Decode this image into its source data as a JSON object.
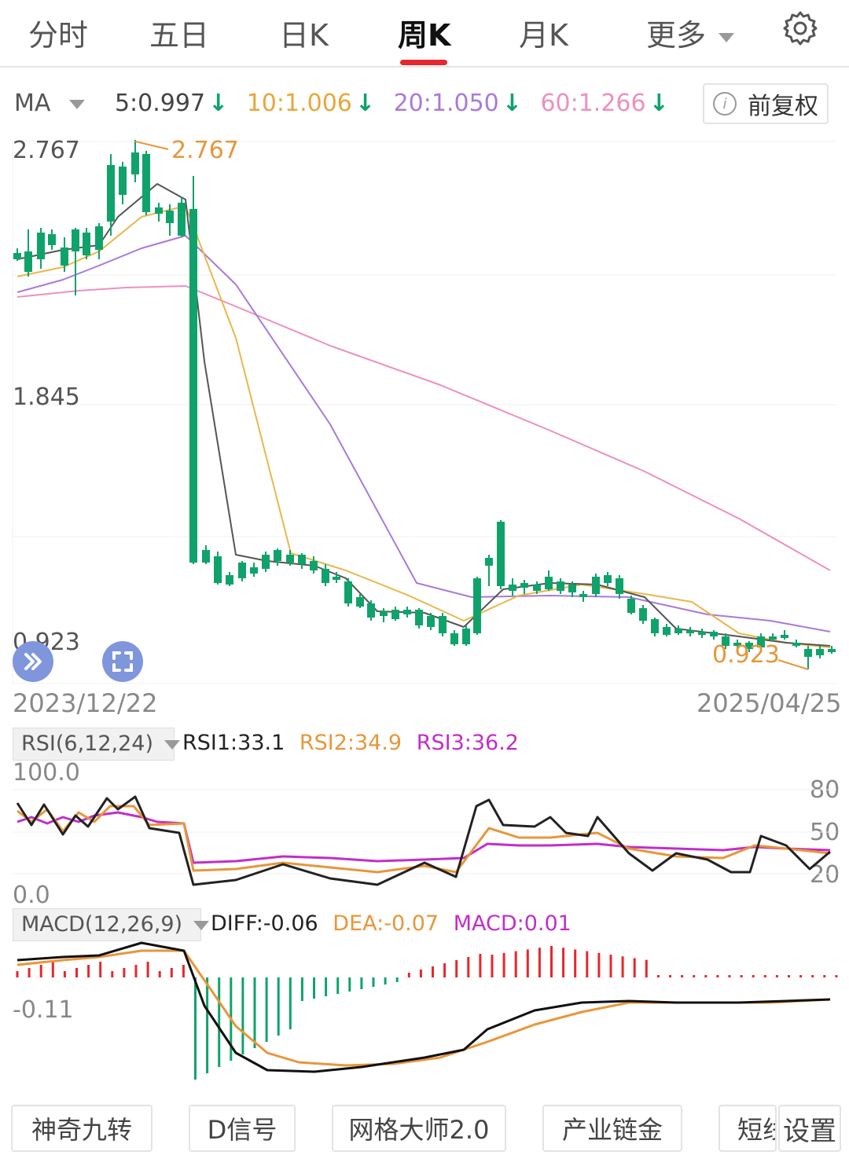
{
  "tabs": [
    {
      "label": "分时",
      "active": false
    },
    {
      "label": "五日",
      "active": false
    },
    {
      "label": "日K",
      "active": false
    },
    {
      "label": "周K",
      "active": true
    },
    {
      "label": "月K",
      "active": false
    },
    {
      "label": "更多",
      "active": false
    }
  ],
  "settings_icon": "gear-icon",
  "ma": {
    "label": "MA",
    "ma5": "5:0.997",
    "ma10": "10:1.006",
    "ma20": "20:1.050",
    "ma60": "60:1.266",
    "down_arrow": "↓",
    "colors": {
      "ma5": "#444444",
      "ma10": "#e8a73a",
      "ma20": "#a97ad8",
      "ma60": "#ee8fc0"
    }
  },
  "adjust_button": {
    "label": "前复权",
    "icon": "info-icon"
  },
  "price_axis": {
    "top": "2.767",
    "mid": "1.845",
    "bottom": "0.923"
  },
  "high_marker": "2.767",
  "low_marker": "0.923",
  "dates": {
    "start": "2023/12/22",
    "end": "2025/04/25"
  },
  "colors": {
    "up": "#e8262d",
    "down": "#0fa36b"
  },
  "rsi": {
    "selector": "RSI(6,12,24)",
    "rsi1": "RSI1:33.1",
    "rsi2": "RSI2:34.9",
    "rsi3": "RSI3:36.2",
    "axis_top": "100.0",
    "axis_bottom": "0.0",
    "levels": [
      "80",
      "50",
      "20"
    ]
  },
  "macd": {
    "selector": "MACD(12,26,9)",
    "diff": "DIFF:-0.06",
    "dea": "DEA:-0.07",
    "macd": "MACD:0.01",
    "axis_label": "-0.11"
  },
  "bottom_buttons": [
    "神奇九转",
    "D信号",
    "网格大师2.0",
    "产业链金",
    "短线",
    "设置"
  ]
}
